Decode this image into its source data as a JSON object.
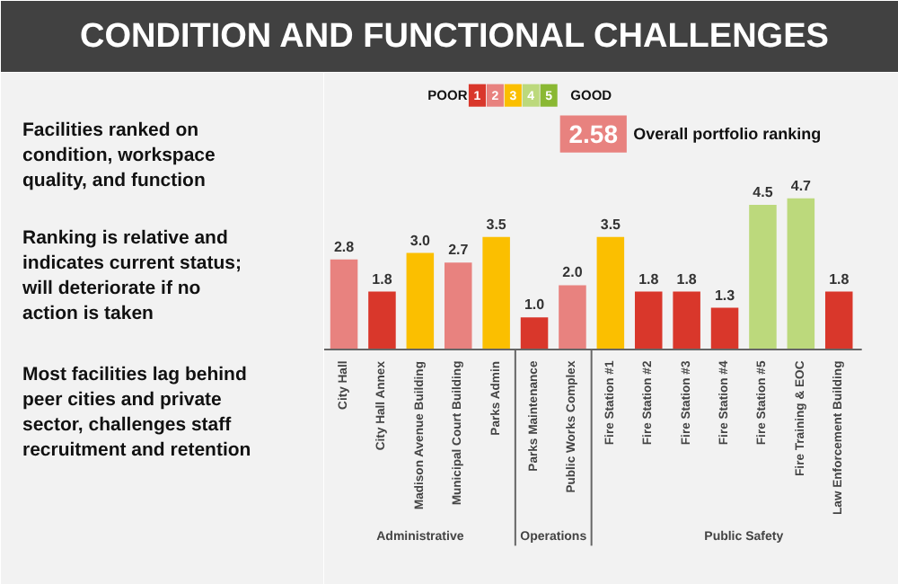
{
  "chart_data": {
    "type": "bar",
    "title": "CONDITION AND FUNCTIONAL CHALLENGES",
    "categories": [
      "City Hall",
      "City Hall Annex",
      "Madison Avenue Building",
      "Municipal Court Building",
      "Parks Admin",
      "Parks Maintenance",
      "Public Works Complex",
      "Fire Station #1",
      "Fire Station #2",
      "Fire Station #3",
      "Fire Station #4",
      "Fire Station #5",
      "Fire Training & EOC",
      "Law Enforcement Building"
    ],
    "values": [
      2.8,
      1.8,
      3.0,
      2.7,
      3.5,
      1.0,
      2.0,
      3.5,
      1.8,
      1.8,
      1.3,
      4.5,
      4.7,
      1.8
    ],
    "colors": [
      "#e8827f",
      "#d9372b",
      "#fbbf00",
      "#e8827f",
      "#fbbf00",
      "#d9372b",
      "#e8827f",
      "#fbbf00",
      "#d9372b",
      "#d9372b",
      "#d9372b",
      "#bcd97c",
      "#bcd97c",
      "#d9372b"
    ],
    "value_labels": [
      "2.8",
      "1.8",
      "3.0",
      "2.7",
      "3.5",
      "1.0",
      "2.0",
      "3.5",
      "1.8",
      "1.8",
      "1.3",
      "4.5",
      "4.7",
      "1.8"
    ],
    "annotations": [
      "Facilities ranked on condition, workspace quality, and function",
      "Ranking is relative and indicates current status; will deteriorate if no action is taken",
      "Most facilities lag behind peer cities and private sector, challenges staff recruitment and retention",
      "POOR",
      "1",
      "2",
      "3",
      "4",
      "5",
      "GOOD",
      "2.58",
      "Overall portfolio ranking",
      "Administrative",
      "Operations",
      "Public Safety"
    ]
  }
}
